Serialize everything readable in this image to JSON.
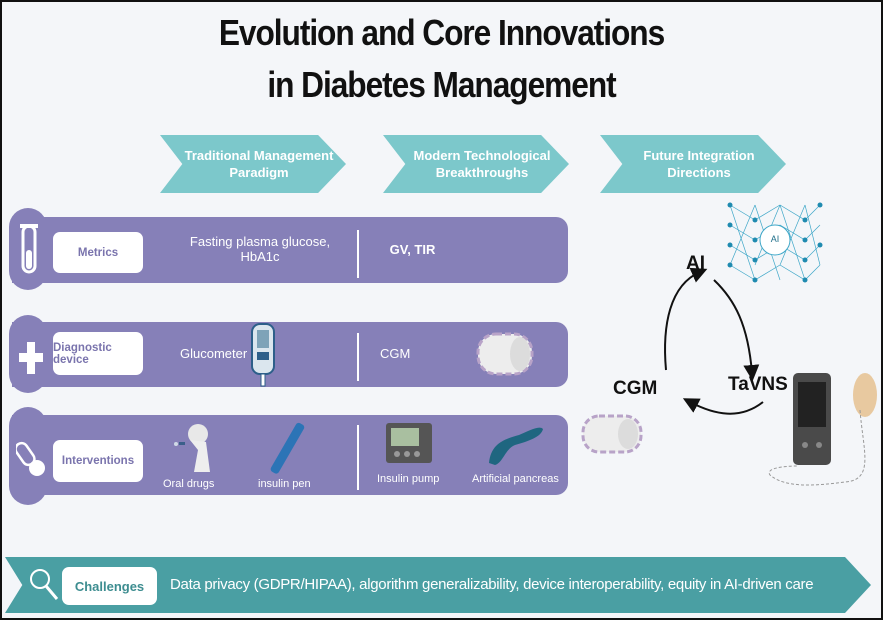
{
  "title": {
    "line1": "Evolution and Core Innovations",
    "line2": "in Diabetes Management"
  },
  "phases": [
    {
      "label": "Traditional Management Paradigm"
    },
    {
      "label": "Modern Technological Breakthroughs"
    },
    {
      "label": "Future Integration Directions"
    }
  ],
  "rows": [
    {
      "icon": "test-tube-icon",
      "label": "Metrics",
      "traditional": "Fasting plasma glucose, HbA1c",
      "modern": "GV, TIR"
    },
    {
      "icon": "plus-icon",
      "label": "Diagnostic device",
      "traditional": "Glucometer",
      "modern": "CGM"
    },
    {
      "icon": "pill-icon",
      "label": "Interventions",
      "traditional_items": [
        "Oral drugs",
        "insulin pen"
      ],
      "modern_items": [
        "Insulin pump",
        "Artificial pancreas"
      ]
    }
  ],
  "future_cycle": {
    "nodes": [
      "AI",
      "TaVNS",
      "CGM"
    ],
    "network_label": "AI"
  },
  "challenges": {
    "icon": "magnifier-icon",
    "label": "Challenges",
    "text": "Data privacy (GDPR/HIPAA), algorithm generalizability, device interoperability, equity in AI-driven care"
  },
  "colors": {
    "band": "#8680b8",
    "phase_arrow": "#7cc8cb",
    "challenge_banner": "#4a9fa3"
  }
}
